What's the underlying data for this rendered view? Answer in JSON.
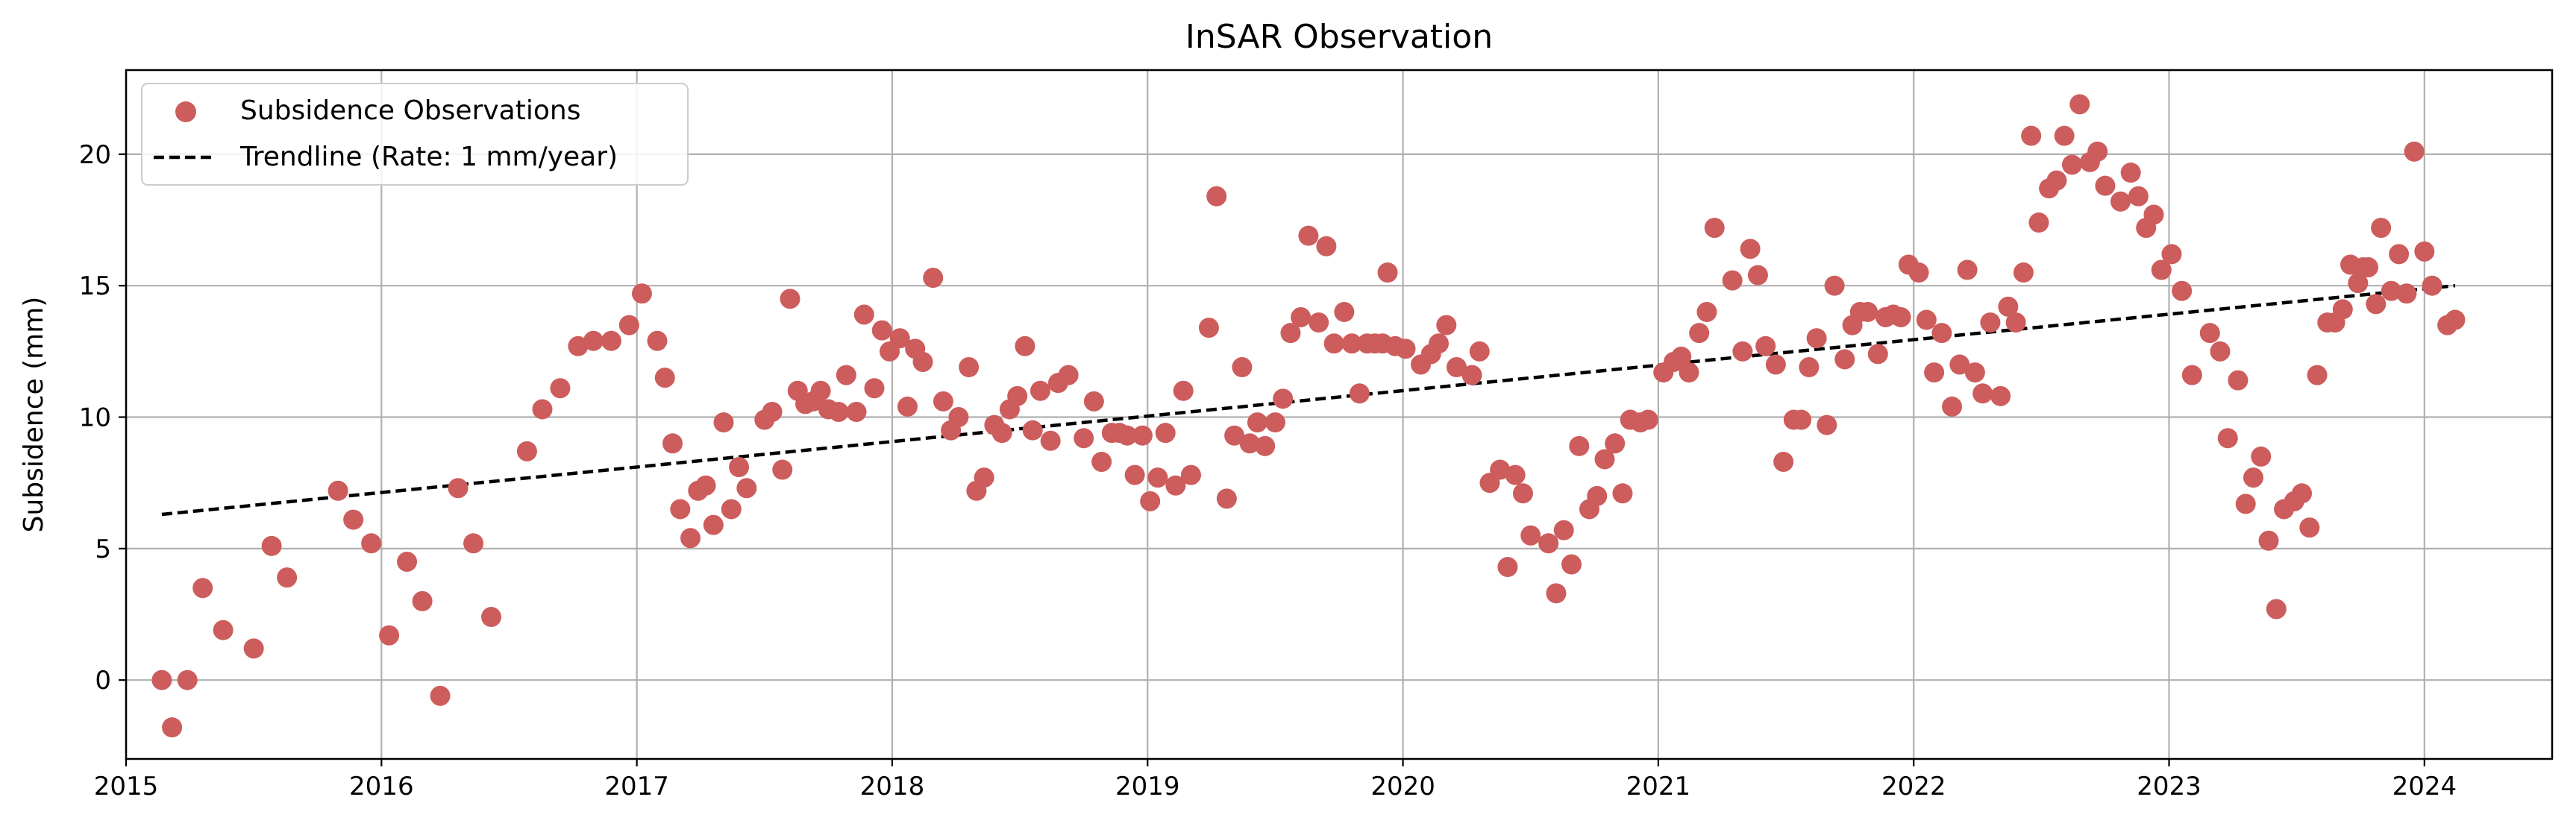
{
  "chart_data": {
    "type": "scatter",
    "title": "InSAR Observation",
    "xlabel": "",
    "ylabel": "Subsidence (mm)",
    "xlim": [
      2015.0,
      2024.5
    ],
    "ylim": [
      -3,
      23.2
    ],
    "xticks": [
      "2015",
      "2016",
      "2017",
      "2018",
      "2019",
      "2020",
      "2021",
      "2022",
      "2023",
      "2024"
    ],
    "yticks": [
      "0",
      "5",
      "10",
      "15",
      "20"
    ],
    "grid": true,
    "legend_position": "top-left",
    "colors": {
      "points": "#cd5c5c",
      "trendline": "#000000",
      "grid": "#b0b0b0"
    },
    "series": [
      {
        "name": "Subsidence Observations",
        "kind": "scatter",
        "points": [
          [
            2015.14,
            0.0
          ],
          [
            2015.18,
            -1.8
          ],
          [
            2015.24,
            0.0
          ],
          [
            2015.3,
            3.5
          ],
          [
            2015.38,
            1.9
          ],
          [
            2015.5,
            1.2
          ],
          [
            2015.57,
            5.1
          ],
          [
            2015.63,
            3.9
          ],
          [
            2015.83,
            7.2
          ],
          [
            2015.89,
            6.1
          ],
          [
            2015.96,
            5.2
          ],
          [
            2016.03,
            1.7
          ],
          [
            2016.1,
            4.5
          ],
          [
            2016.16,
            3.0
          ],
          [
            2016.23,
            -0.6
          ],
          [
            2016.3,
            7.3
          ],
          [
            2016.36,
            5.2
          ],
          [
            2016.43,
            2.4
          ],
          [
            2016.57,
            8.7
          ],
          [
            2016.63,
            10.3
          ],
          [
            2016.7,
            11.1
          ],
          [
            2016.77,
            12.7
          ],
          [
            2016.83,
            12.9
          ],
          [
            2016.9,
            12.9
          ],
          [
            2016.97,
            13.5
          ],
          [
            2017.02,
            14.7
          ],
          [
            2017.08,
            12.9
          ],
          [
            2017.11,
            11.5
          ],
          [
            2017.14,
            9.0
          ],
          [
            2017.17,
            6.5
          ],
          [
            2017.21,
            5.4
          ],
          [
            2017.24,
            7.2
          ],
          [
            2017.27,
            7.4
          ],
          [
            2017.3,
            5.9
          ],
          [
            2017.34,
            9.8
          ],
          [
            2017.37,
            6.5
          ],
          [
            2017.4,
            8.1
          ],
          [
            2017.43,
            7.3
          ],
          [
            2017.5,
            9.9
          ],
          [
            2017.53,
            10.2
          ],
          [
            2017.57,
            8.0
          ],
          [
            2017.6,
            14.5
          ],
          [
            2017.63,
            11.0
          ],
          [
            2017.66,
            10.5
          ],
          [
            2017.69,
            10.6
          ],
          [
            2017.72,
            11.0
          ],
          [
            2017.75,
            10.3
          ],
          [
            2017.79,
            10.2
          ],
          [
            2017.82,
            11.6
          ],
          [
            2017.86,
            10.2
          ],
          [
            2017.89,
            13.9
          ],
          [
            2017.93,
            11.1
          ],
          [
            2017.96,
            13.3
          ],
          [
            2017.99,
            12.5
          ],
          [
            2018.03,
            13.0
          ],
          [
            2018.06,
            10.4
          ],
          [
            2018.09,
            12.6
          ],
          [
            2018.12,
            12.1
          ],
          [
            2018.16,
            15.3
          ],
          [
            2018.2,
            10.6
          ],
          [
            2018.23,
            9.5
          ],
          [
            2018.26,
            10.0
          ],
          [
            2018.3,
            11.9
          ],
          [
            2018.33,
            7.2
          ],
          [
            2018.36,
            7.7
          ],
          [
            2018.4,
            9.7
          ],
          [
            2018.43,
            9.4
          ],
          [
            2018.46,
            10.3
          ],
          [
            2018.49,
            10.8
          ],
          [
            2018.52,
            12.7
          ],
          [
            2018.55,
            9.5
          ],
          [
            2018.58,
            11.0
          ],
          [
            2018.62,
            9.1
          ],
          [
            2018.65,
            11.3
          ],
          [
            2018.69,
            11.6
          ],
          [
            2018.75,
            9.2
          ],
          [
            2018.79,
            10.6
          ],
          [
            2018.82,
            8.3
          ],
          [
            2018.86,
            9.4
          ],
          [
            2018.89,
            9.4
          ],
          [
            2018.92,
            9.3
          ],
          [
            2018.95,
            7.8
          ],
          [
            2018.98,
            9.3
          ],
          [
            2019.01,
            6.8
          ],
          [
            2019.04,
            7.7
          ],
          [
            2019.07,
            9.4
          ],
          [
            2019.11,
            7.4
          ],
          [
            2019.14,
            11.0
          ],
          [
            2019.17,
            7.8
          ],
          [
            2019.24,
            13.4
          ],
          [
            2019.27,
            18.4
          ],
          [
            2019.31,
            6.9
          ],
          [
            2019.34,
            9.3
          ],
          [
            2019.37,
            11.9
          ],
          [
            2019.4,
            9.0
          ],
          [
            2019.43,
            9.8
          ],
          [
            2019.46,
            8.9
          ],
          [
            2019.5,
            9.8
          ],
          [
            2019.53,
            10.7
          ],
          [
            2019.56,
            13.2
          ],
          [
            2019.6,
            13.8
          ],
          [
            2019.63,
            16.9
          ],
          [
            2019.67,
            13.6
          ],
          [
            2019.7,
            16.5
          ],
          [
            2019.73,
            12.8
          ],
          [
            2019.77,
            14.0
          ],
          [
            2019.8,
            12.8
          ],
          [
            2019.83,
            10.9
          ],
          [
            2019.86,
            12.8
          ],
          [
            2019.89,
            12.8
          ],
          [
            2019.92,
            12.8
          ],
          [
            2019.94,
            15.5
          ],
          [
            2019.97,
            12.7
          ],
          [
            2020.01,
            12.6
          ],
          [
            2020.07,
            12.0
          ],
          [
            2020.11,
            12.4
          ],
          [
            2020.14,
            12.8
          ],
          [
            2020.17,
            13.5
          ],
          [
            2020.21,
            11.9
          ],
          [
            2020.27,
            11.6
          ],
          [
            2020.3,
            12.5
          ],
          [
            2020.34,
            7.5
          ],
          [
            2020.38,
            8.0
          ],
          [
            2020.41,
            4.3
          ],
          [
            2020.44,
            7.8
          ],
          [
            2020.47,
            7.1
          ],
          [
            2020.5,
            5.5
          ],
          [
            2020.57,
            5.2
          ],
          [
            2020.6,
            3.3
          ],
          [
            2020.63,
            5.7
          ],
          [
            2020.66,
            4.4
          ],
          [
            2020.69,
            8.9
          ],
          [
            2020.73,
            6.5
          ],
          [
            2020.76,
            7.0
          ],
          [
            2020.79,
            8.4
          ],
          [
            2020.83,
            9.0
          ],
          [
            2020.86,
            7.1
          ],
          [
            2020.89,
            9.9
          ],
          [
            2020.93,
            9.8
          ],
          [
            2020.96,
            9.9
          ],
          [
            2021.02,
            11.7
          ],
          [
            2021.06,
            12.1
          ],
          [
            2021.09,
            12.3
          ],
          [
            2021.12,
            11.7
          ],
          [
            2021.16,
            13.2
          ],
          [
            2021.19,
            14.0
          ],
          [
            2021.22,
            17.2
          ],
          [
            2021.29,
            15.2
          ],
          [
            2021.33,
            12.5
          ],
          [
            2021.36,
            16.4
          ],
          [
            2021.39,
            15.4
          ],
          [
            2021.42,
            12.7
          ],
          [
            2021.46,
            12.0
          ],
          [
            2021.49,
            8.3
          ],
          [
            2021.53,
            9.9
          ],
          [
            2021.56,
            9.9
          ],
          [
            2021.59,
            11.9
          ],
          [
            2021.62,
            13.0
          ],
          [
            2021.66,
            9.7
          ],
          [
            2021.69,
            15.0
          ],
          [
            2021.73,
            12.2
          ],
          [
            2021.76,
            13.5
          ],
          [
            2021.79,
            14.0
          ],
          [
            2021.82,
            14.0
          ],
          [
            2021.86,
            12.4
          ],
          [
            2021.89,
            13.8
          ],
          [
            2021.92,
            13.9
          ],
          [
            2021.95,
            13.8
          ],
          [
            2021.98,
            15.8
          ],
          [
            2022.02,
            15.5
          ],
          [
            2022.05,
            13.7
          ],
          [
            2022.08,
            11.7
          ],
          [
            2022.11,
            13.2
          ],
          [
            2022.15,
            10.4
          ],
          [
            2022.18,
            12.0
          ],
          [
            2022.21,
            15.6
          ],
          [
            2022.24,
            11.7
          ],
          [
            2022.27,
            10.9
          ],
          [
            2022.3,
            13.6
          ],
          [
            2022.34,
            10.8
          ],
          [
            2022.37,
            14.2
          ],
          [
            2022.4,
            13.6
          ],
          [
            2022.43,
            15.5
          ],
          [
            2022.46,
            20.7
          ],
          [
            2022.49,
            17.4
          ],
          [
            2022.53,
            18.7
          ],
          [
            2022.56,
            19.0
          ],
          [
            2022.59,
            20.7
          ],
          [
            2022.62,
            19.6
          ],
          [
            2022.65,
            21.9
          ],
          [
            2022.69,
            19.7
          ],
          [
            2022.72,
            20.1
          ],
          [
            2022.75,
            18.8
          ],
          [
            2022.81,
            18.2
          ],
          [
            2022.85,
            19.3
          ],
          [
            2022.88,
            18.4
          ],
          [
            2022.91,
            17.2
          ],
          [
            2022.94,
            17.7
          ],
          [
            2022.97,
            15.6
          ],
          [
            2023.01,
            16.2
          ],
          [
            2023.05,
            14.8
          ],
          [
            2023.09,
            11.6
          ],
          [
            2023.16,
            13.2
          ],
          [
            2023.2,
            12.5
          ],
          [
            2023.23,
            9.2
          ],
          [
            2023.27,
            11.4
          ],
          [
            2023.3,
            6.7
          ],
          [
            2023.33,
            7.7
          ],
          [
            2023.36,
            8.5
          ],
          [
            2023.39,
            5.3
          ],
          [
            2023.42,
            2.7
          ],
          [
            2023.45,
            6.5
          ],
          [
            2023.49,
            6.8
          ],
          [
            2023.52,
            7.1
          ],
          [
            2023.55,
            5.8
          ],
          [
            2023.58,
            11.6
          ],
          [
            2023.62,
            13.6
          ],
          [
            2023.65,
            13.6
          ],
          [
            2023.68,
            14.1
          ],
          [
            2023.71,
            15.8
          ],
          [
            2023.74,
            15.1
          ],
          [
            2023.76,
            15.7
          ],
          [
            2023.78,
            15.7
          ],
          [
            2023.81,
            14.3
          ],
          [
            2023.83,
            17.2
          ],
          [
            2023.87,
            14.8
          ],
          [
            2023.9,
            16.2
          ],
          [
            2023.93,
            14.7
          ],
          [
            2023.96,
            20.1
          ],
          [
            2024.0,
            16.3
          ],
          [
            2024.03,
            15.0
          ],
          [
            2024.09,
            13.5
          ],
          [
            2024.12,
            13.7
          ]
        ]
      },
      {
        "name": "Trendline (Rate: 1 mm/year)",
        "kind": "line",
        "style": "dashed",
        "points": [
          [
            2015.14,
            6.3
          ],
          [
            2024.12,
            15.0
          ]
        ]
      }
    ]
  }
}
